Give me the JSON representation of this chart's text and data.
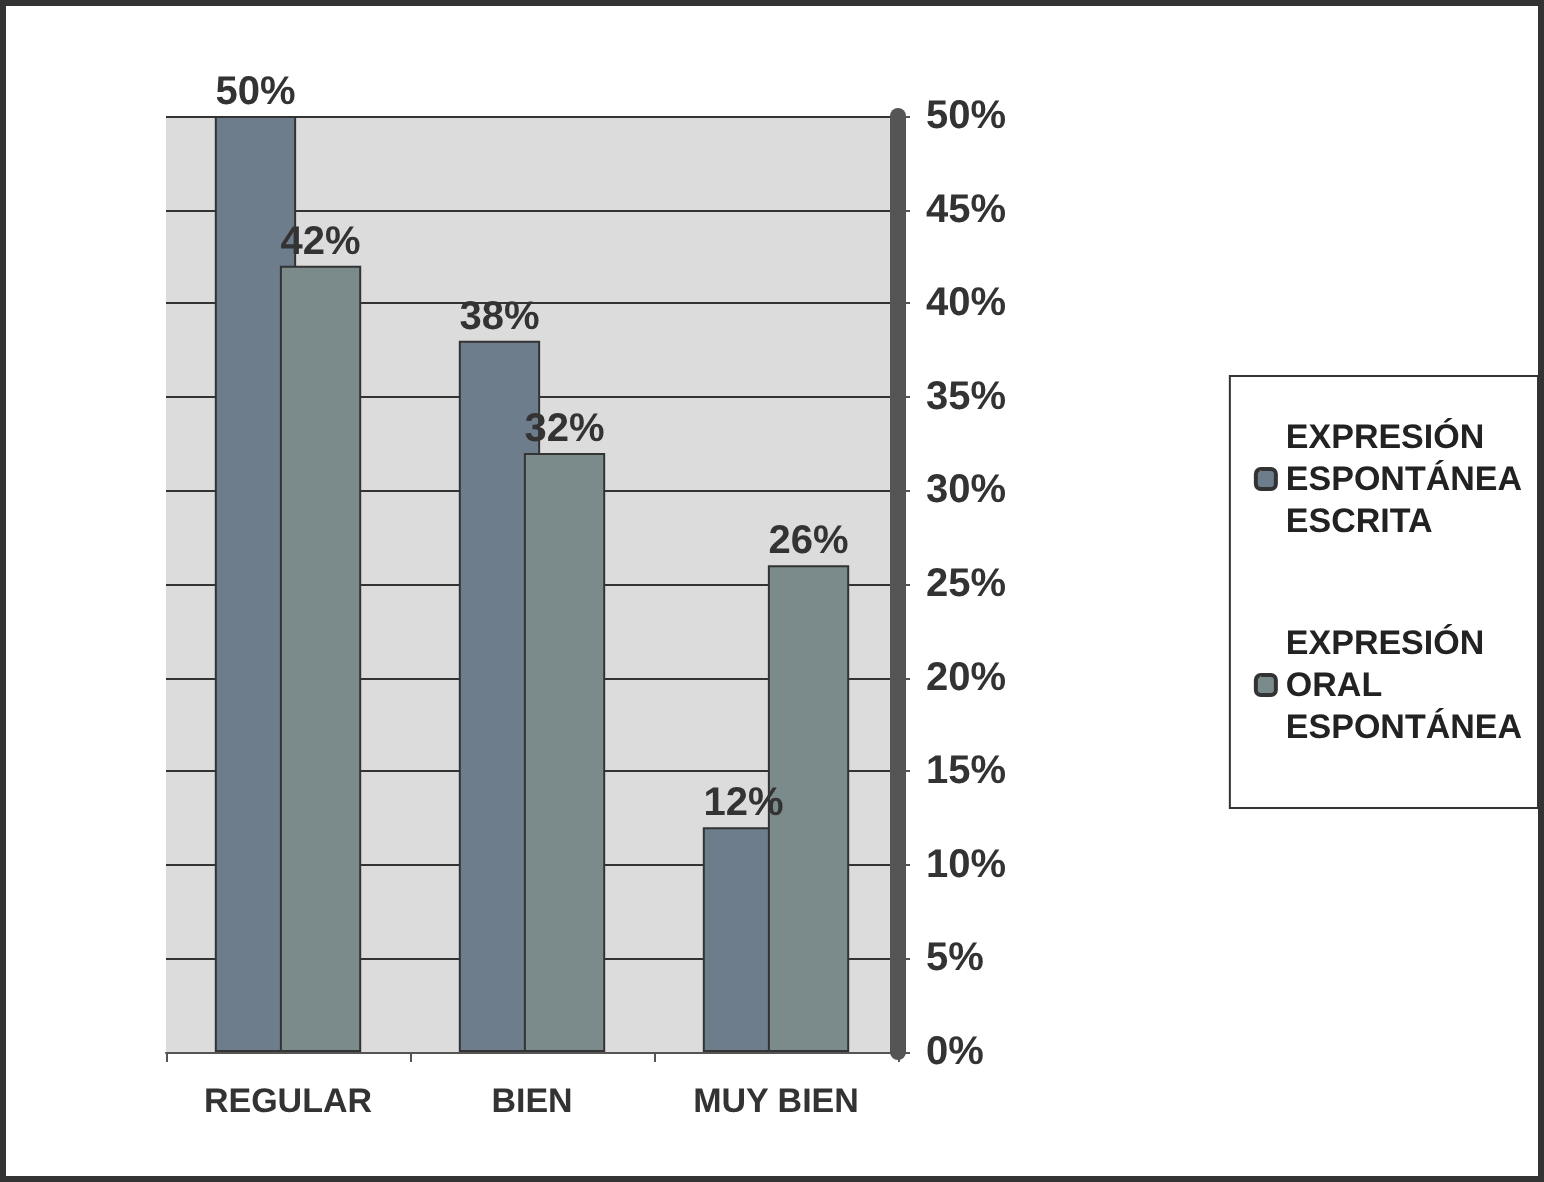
{
  "chart_data": {
    "type": "bar",
    "categories": [
      "REGULAR",
      "BIEN",
      "MUY BIEN"
    ],
    "series": [
      {
        "name": "EXPRESIÓN ESPONTÁNEA ESCRITA",
        "color": "#6e7d8c",
        "values": [
          50,
          38,
          12
        ],
        "value_labels": [
          "50%",
          "38%",
          "12%"
        ]
      },
      {
        "name": "EXPRESIÓN ORAL ESPONTÁNEA",
        "color": "#7b8a8a",
        "values": [
          42,
          32,
          26
        ],
        "value_labels": [
          "42%",
          "32%",
          "26%"
        ]
      }
    ],
    "ylim": [
      0,
      50
    ],
    "yticks": [
      {
        "value": 0,
        "label": "0%"
      },
      {
        "value": 5,
        "label": "5%"
      },
      {
        "value": 10,
        "label": "10%"
      },
      {
        "value": 15,
        "label": "15%"
      },
      {
        "value": 20,
        "label": "20%"
      },
      {
        "value": 25,
        "label": "25%"
      },
      {
        "value": 30,
        "label": "30%"
      },
      {
        "value": 35,
        "label": "35%"
      },
      {
        "value": 40,
        "label": "40%"
      },
      {
        "value": 45,
        "label": "45%"
      },
      {
        "value": 50,
        "label": "50%"
      }
    ],
    "grid": "y",
    "legend": "right"
  }
}
